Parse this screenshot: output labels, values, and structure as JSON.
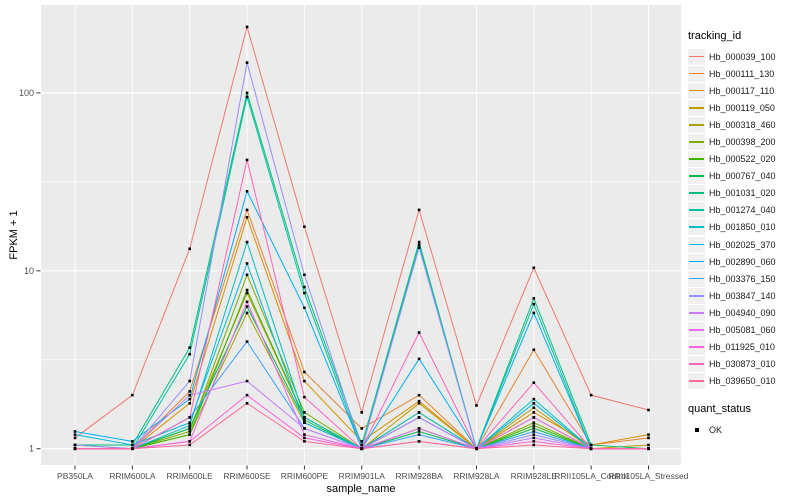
{
  "figure": {
    "background": "#FFFFFF",
    "panel_background": "#EBEBEB",
    "grid_color": "#FFFFFF",
    "tick_color": "#333333",
    "tick_label_color": "#4D4D4D",
    "point_color": "#000000"
  },
  "chart_data": {
    "type": "line",
    "title": "",
    "xlabel": "sample_name",
    "ylabel": "FPKM + 1",
    "y_scale": "log10",
    "y_ticks": [
      1,
      10,
      100
    ],
    "y_minor_ticks": [
      3.1623,
      31.623
    ],
    "ylim": [
      0.81,
      312
    ],
    "grid": "on",
    "legend_position": "right",
    "legend_title": "tracking_id",
    "quant_legend": {
      "title": "quant_status",
      "items": [
        {
          "label": "OK",
          "shape": "square",
          "color": "#000000"
        }
      ]
    },
    "categories": [
      "PB350LA",
      "RRIM600LA",
      "RRIM600LE",
      "RRIM600SE",
      "RRIM600PE",
      "RRIM901LA",
      "RRIM928BA",
      "RRIM928LA",
      "RRIM928LE",
      "RRII105LA_Control",
      "RRII105LA_Stressed"
    ],
    "series": [
      {
        "name": "Hb_000039_100",
        "color": "#F8766D",
        "values": [
          1.15,
          2.0,
          13.3,
          235,
          17.7,
          1.6,
          22,
          1.75,
          10.4,
          2.0,
          1.65
        ]
      },
      {
        "name": "Hb_000111_130",
        "color": "#EA8331",
        "values": [
          1.0,
          1.0,
          2.1,
          22,
          2.7,
          1.3,
          2.0,
          1.0,
          3.6,
          1.05,
          1.15
        ]
      },
      {
        "name": "Hb_000117_110",
        "color": "#D89000",
        "values": [
          1.0,
          1.0,
          1.8,
          20,
          2.4,
          1.1,
          1.85,
          1.0,
          1.6,
          1.05,
          1.2
        ]
      },
      {
        "name": "Hb_000119_050",
        "color": "#C09B00",
        "values": [
          1.05,
          1.0,
          1.3,
          7.5,
          1.5,
          1.0,
          1.8,
          1.0,
          1.7,
          1.0,
          1.05
        ]
      },
      {
        "name": "Hb_000318_460",
        "color": "#A3A500",
        "values": [
          1.0,
          1.0,
          1.2,
          5.8,
          1.4,
          1.0,
          1.6,
          1.0,
          1.5,
          1.0,
          1.0
        ]
      },
      {
        "name": "Hb_000398_200",
        "color": "#7CAE00",
        "values": [
          1.0,
          1.0,
          1.25,
          9.5,
          1.6,
          1.0,
          1.5,
          1.0,
          1.4,
          1.0,
          1.0
        ]
      },
      {
        "name": "Hb_000522_020",
        "color": "#39B600",
        "values": [
          1.0,
          1.0,
          1.2,
          7.8,
          1.5,
          1.0,
          1.3,
          1.0,
          1.35,
          1.0,
          1.0
        ]
      },
      {
        "name": "Hb_000767_040",
        "color": "#00BB4E",
        "values": [
          1.0,
          1.0,
          1.3,
          6.3,
          1.45,
          1.0,
          1.25,
          1.0,
          1.3,
          1.0,
          1.0
        ]
      },
      {
        "name": "Hb_001031_020",
        "color": "#00BF7D",
        "values": [
          1.05,
          1.05,
          3.7,
          100,
          8.1,
          1.05,
          14.5,
          1.0,
          7.0,
          1.05,
          1.0
        ]
      },
      {
        "name": "Hb_001274_040",
        "color": "#00C1A3",
        "values": [
          1.0,
          1.0,
          3.4,
          95,
          7.5,
          1.0,
          14.0,
          1.0,
          6.5,
          1.0,
          1.0
        ]
      },
      {
        "name": "Hb_001850_010",
        "color": "#00BFC4",
        "values": [
          1.0,
          1.0,
          1.35,
          14.5,
          1.5,
          1.0,
          1.6,
          1.0,
          1.9,
          1.0,
          1.0
        ]
      },
      {
        "name": "Hb_002025_370",
        "color": "#00BAE0",
        "values": [
          1.2,
          1.05,
          1.4,
          11,
          1.4,
          1.0,
          1.5,
          1.0,
          1.8,
          1.0,
          1.0
        ]
      },
      {
        "name": "Hb_002890_060",
        "color": "#00B0F6",
        "values": [
          1.25,
          1.1,
          1.9,
          28,
          6.2,
          1.0,
          3.2,
          1.0,
          5.8,
          1.0,
          1.0
        ]
      },
      {
        "name": "Hb_003376_150",
        "color": "#35A2FF",
        "values": [
          1.0,
          1.0,
          1.5,
          4.0,
          1.3,
          1.0,
          1.2,
          1.0,
          1.25,
          1.0,
          1.0
        ]
      },
      {
        "name": "Hb_003847_140",
        "color": "#9590FF",
        "values": [
          1.05,
          1.0,
          2.4,
          148,
          9.5,
          1.0,
          13.5,
          1.0,
          1.2,
          1.0,
          1.0
        ]
      },
      {
        "name": "Hb_004940_090",
        "color": "#C77CFF",
        "values": [
          1.0,
          1.0,
          2.0,
          2.4,
          1.3,
          1.0,
          1.5,
          1.0,
          1.15,
          1.0,
          1.0
        ]
      },
      {
        "name": "Hb_005081_060",
        "color": "#E76BF3",
        "values": [
          1.0,
          1.0,
          1.1,
          6.7,
          1.2,
          1.0,
          1.3,
          1.0,
          1.5,
          1.0,
          1.0
        ]
      },
      {
        "name": "Hb_011925_010",
        "color": "#FA62DB",
        "values": [
          1.0,
          1.0,
          1.1,
          2.0,
          1.15,
          1.0,
          1.1,
          1.0,
          1.1,
          1.0,
          1.0
        ]
      },
      {
        "name": "Hb_030873_010",
        "color": "#FF62BC",
        "values": [
          1.0,
          1.0,
          1.5,
          42,
          1.95,
          1.0,
          4.5,
          1.0,
          2.35,
          1.0,
          1.0
        ]
      },
      {
        "name": "Hb_039650_010",
        "color": "#FF6A98",
        "values": [
          1.0,
          1.0,
          1.05,
          1.8,
          1.1,
          1.0,
          1.1,
          1.0,
          1.05,
          1.0,
          1.0
        ]
      }
    ]
  }
}
